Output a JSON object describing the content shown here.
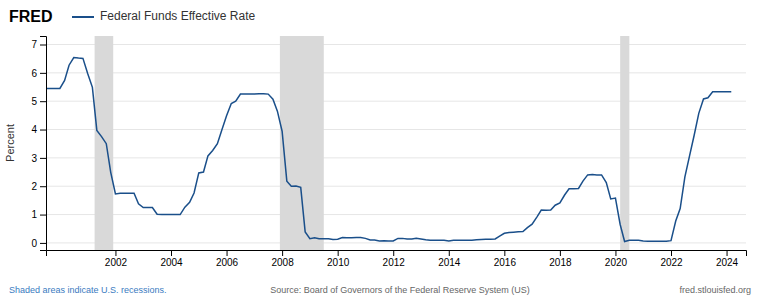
{
  "chart_data": {
    "type": "line",
    "title": "Federal Funds Effective Rate",
    "ylabel": "Percent",
    "color": "#1a4f8a",
    "grid": true,
    "annotations": [
      "FRED",
      "Shaded areas indicate U.S. recessions.",
      "Source: Board of Governors of the Federal Reserve System (US)",
      "fred.stlouisfed.org"
    ],
    "recessions": [
      [
        2001.25,
        2001.92
      ],
      [
        2007.92,
        2009.5
      ],
      [
        2020.17,
        2020.5
      ]
    ],
    "xlim": [
      1999.5,
      2024.7
    ],
    "ylim": [
      -0.25,
      7.3
    ],
    "yticks": [
      0,
      1,
      2,
      3,
      4,
      5,
      6,
      7
    ],
    "xticks": [
      2002,
      2004,
      2006,
      2008,
      2010,
      2012,
      2014,
      2016,
      2018,
      2020,
      2022,
      2024
    ],
    "x": [
      1999.5,
      1999.67,
      1999.83,
      2000.0,
      2000.17,
      2000.33,
      2000.5,
      2000.67,
      2000.83,
      2001.0,
      2001.17,
      2001.33,
      2001.5,
      2001.67,
      2001.83,
      2002.0,
      2002.17,
      2002.33,
      2002.5,
      2002.67,
      2002.83,
      2003.0,
      2003.17,
      2003.33,
      2003.5,
      2003.67,
      2003.83,
      2004.0,
      2004.17,
      2004.33,
      2004.5,
      2004.67,
      2004.83,
      2005.0,
      2005.17,
      2005.33,
      2005.5,
      2005.67,
      2005.83,
      2006.0,
      2006.17,
      2006.33,
      2006.5,
      2006.67,
      2006.83,
      2007.0,
      2007.17,
      2007.33,
      2007.5,
      2007.67,
      2007.83,
      2008.0,
      2008.17,
      2008.33,
      2008.5,
      2008.67,
      2008.83,
      2009.0,
      2009.17,
      2009.33,
      2009.5,
      2009.67,
      2009.83,
      2010.0,
      2010.17,
      2010.33,
      2010.5,
      2010.67,
      2010.83,
      2011.0,
      2011.17,
      2011.33,
      2011.5,
      2011.67,
      2011.83,
      2012.0,
      2012.17,
      2012.33,
      2012.5,
      2012.67,
      2012.83,
      2013.0,
      2013.17,
      2013.33,
      2013.5,
      2013.67,
      2013.83,
      2014.0,
      2014.17,
      2014.33,
      2014.5,
      2014.67,
      2014.83,
      2015.0,
      2015.17,
      2015.33,
      2015.5,
      2015.67,
      2015.83,
      2016.0,
      2016.17,
      2016.33,
      2016.5,
      2016.67,
      2016.83,
      2017.0,
      2017.17,
      2017.33,
      2017.5,
      2017.67,
      2017.83,
      2018.0,
      2018.17,
      2018.33,
      2018.5,
      2018.67,
      2018.83,
      2019.0,
      2019.17,
      2019.33,
      2019.5,
      2019.67,
      2019.83,
      2020.0,
      2020.17,
      2020.33,
      2020.5,
      2020.67,
      2020.83,
      2021.0,
      2021.17,
      2021.33,
      2021.5,
      2021.67,
      2021.83,
      2022.0,
      2022.17,
      2022.33,
      2022.5,
      2022.67,
      2022.83,
      2023.0,
      2023.17,
      2023.33,
      2023.5,
      2023.67,
      2023.83,
      2024.0,
      2024.17
    ],
    "values": [
      5.45,
      5.45,
      5.45,
      5.45,
      5.73,
      6.27,
      6.54,
      6.52,
      6.51,
      5.98,
      5.49,
      3.97,
      3.75,
      3.5,
      2.49,
      1.73,
      1.75,
      1.75,
      1.75,
      1.75,
      1.38,
      1.25,
      1.25,
      1.25,
      1.01,
      1.0,
      1.0,
      1.0,
      1.0,
      1.0,
      1.26,
      1.43,
      1.76,
      2.47,
      2.5,
      3.07,
      3.26,
      3.5,
      3.98,
      4.49,
      4.92,
      5.0,
      5.25,
      5.25,
      5.25,
      5.25,
      5.26,
      5.26,
      5.25,
      5.07,
      4.65,
      3.94,
      2.18,
      2.0,
      2.01,
      1.96,
      0.39,
      0.15,
      0.18,
      0.15,
      0.15,
      0.15,
      0.12,
      0.13,
      0.19,
      0.18,
      0.18,
      0.19,
      0.19,
      0.16,
      0.1,
      0.1,
      0.07,
      0.08,
      0.07,
      0.07,
      0.16,
      0.16,
      0.14,
      0.14,
      0.16,
      0.14,
      0.11,
      0.09,
      0.09,
      0.09,
      0.09,
      0.07,
      0.09,
      0.09,
      0.09,
      0.09,
      0.09,
      0.11,
      0.12,
      0.13,
      0.13,
      0.14,
      0.24,
      0.34,
      0.37,
      0.38,
      0.39,
      0.4,
      0.54,
      0.66,
      0.91,
      1.16,
      1.15,
      1.16,
      1.33,
      1.41,
      1.69,
      1.91,
      1.91,
      1.92,
      2.18,
      2.4,
      2.41,
      2.4,
      2.4,
      2.13,
      1.55,
      1.58,
      0.65,
      0.05,
      0.09,
      0.09,
      0.09,
      0.07,
      0.06,
      0.06,
      0.06,
      0.06,
      0.06,
      0.08,
      0.77,
      1.21,
      2.33,
      3.08,
      3.78,
      4.57,
      5.08,
      5.12,
      5.33,
      5.33,
      5.33,
      5.33,
      5.33
    ]
  }
}
